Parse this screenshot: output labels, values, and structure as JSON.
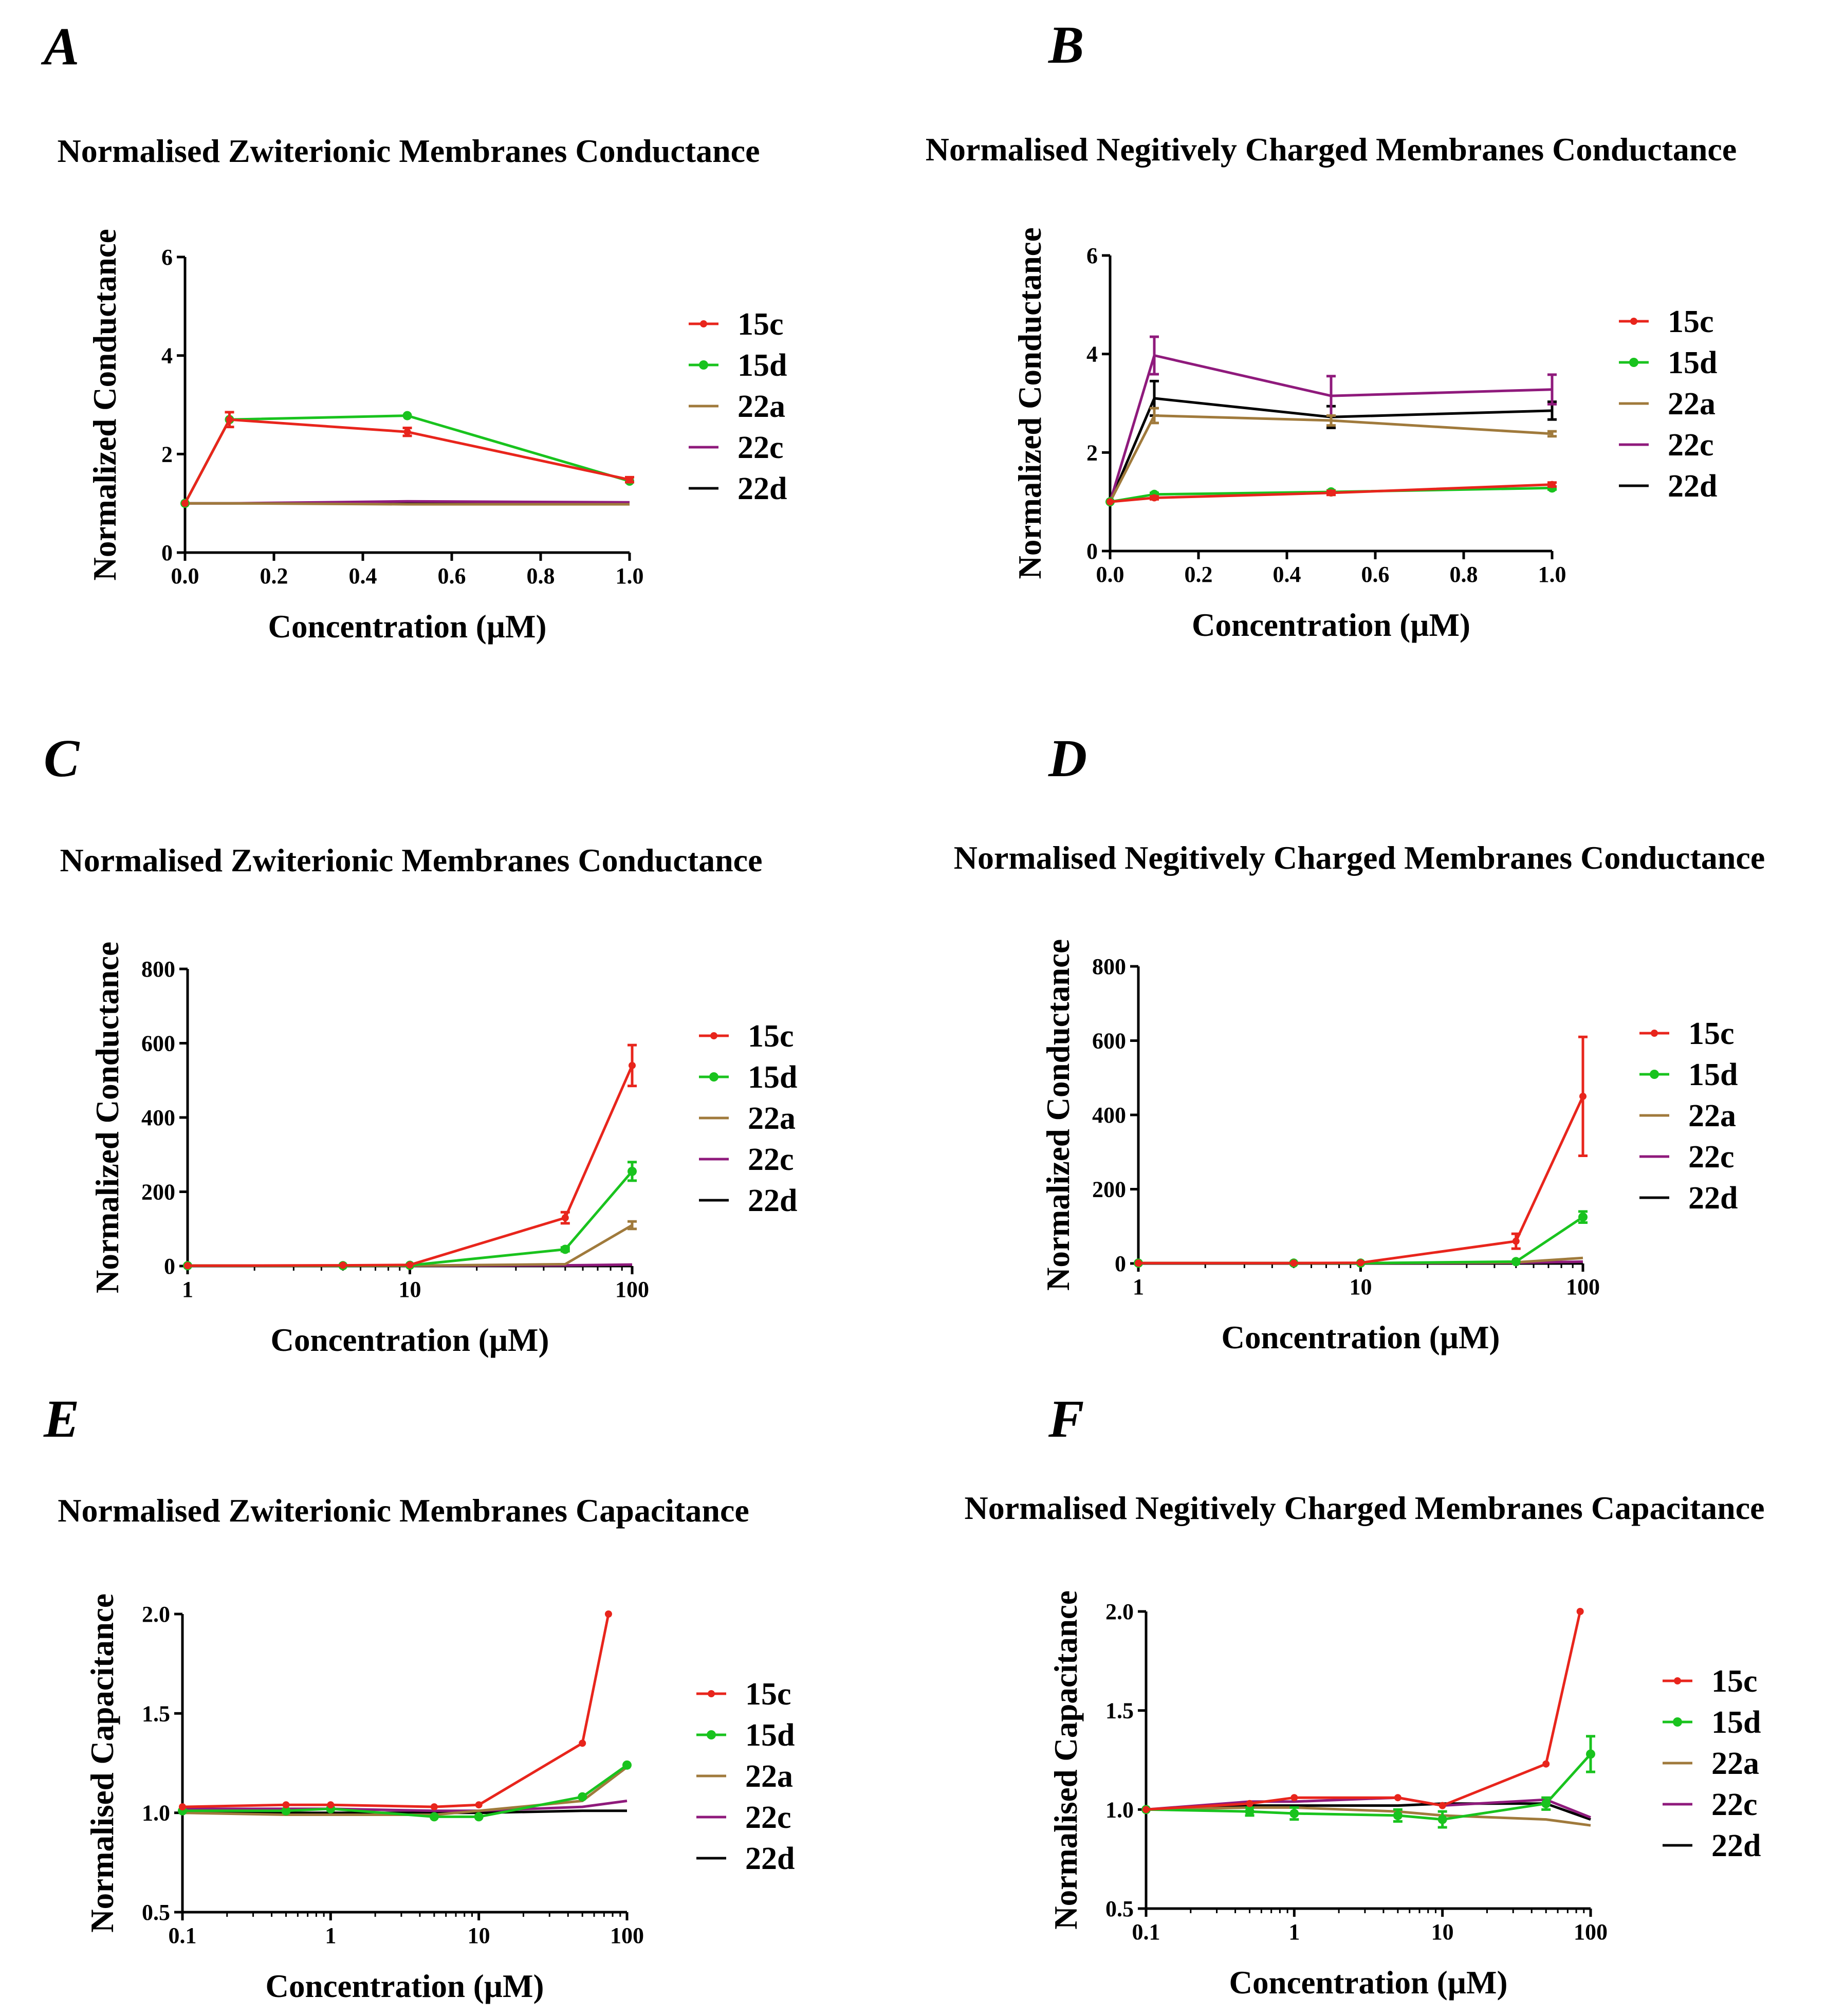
{
  "figure": {
    "colors": {
      "15c": "#e8251c",
      "15d": "#19c31e",
      "22a": "#a07a3c",
      "22c": "#8f1a7c",
      "22d": "#000000"
    },
    "legend": [
      "15c",
      "15d",
      "22a",
      "22c",
      "22d"
    ]
  },
  "chart_data": [
    {
      "panel": "A",
      "type": "line",
      "title": "Normalised Zwiterionic Membranes Conductance",
      "xlabel": "Concentration (µM)",
      "ylabel": "Normalized Conductance",
      "xscale": "linear",
      "xlim": [
        0,
        1
      ],
      "ylim": [
        0,
        6
      ],
      "xticks": [
        0,
        0.2,
        0.4,
        0.6,
        0.8,
        1
      ],
      "xtick_labels": [
        "0.0",
        "0.2",
        "0.4",
        "0.6",
        "0.8",
        "1.0"
      ],
      "yticks": [
        0,
        2,
        4,
        6
      ],
      "ytick_labels": [
        "0",
        "2",
        "4",
        "6"
      ],
      "legend_position": "right",
      "series": [
        {
          "name": "15c",
          "x": [
            0,
            0.1,
            0.5,
            1
          ],
          "y": [
            1.0,
            2.7,
            2.45,
            1.48
          ],
          "err": [
            0,
            0.15,
            0.08,
            0.05
          ]
        },
        {
          "name": "15d",
          "x": [
            0,
            0.1,
            0.5,
            1
          ],
          "y": [
            1.0,
            2.7,
            2.78,
            1.45
          ],
          "err": [
            0,
            0,
            0,
            0
          ]
        },
        {
          "name": "22a",
          "x": [
            0,
            0.1,
            0.5,
            1
          ],
          "y": [
            1.0,
            1.0,
            0.98,
            0.98
          ],
          "err": [
            0,
            0,
            0,
            0
          ]
        },
        {
          "name": "22c",
          "x": [
            0,
            0.1,
            0.5,
            1
          ],
          "y": [
            1.0,
            1.0,
            1.04,
            1.02
          ],
          "err": [
            0,
            0,
            0,
            0
          ]
        },
        {
          "name": "22d",
          "x": [
            0,
            0.1,
            0.5,
            1
          ],
          "y": [
            1.0,
            1.0,
            1.0,
            1.0
          ],
          "err": [
            0,
            0,
            0,
            0
          ]
        }
      ]
    },
    {
      "panel": "B",
      "type": "line",
      "title": "Normalised Negitively Charged Membranes Conductance",
      "xlabel": "Concentration (µM)",
      "ylabel": "Normalized Conductance",
      "xscale": "linear",
      "xlim": [
        0,
        1
      ],
      "ylim": [
        0,
        6
      ],
      "xticks": [
        0,
        0.2,
        0.4,
        0.6,
        0.8,
        1
      ],
      "xtick_labels": [
        "0.0",
        "0.2",
        "0.4",
        "0.6",
        "0.8",
        "1.0"
      ],
      "yticks": [
        0,
        2,
        4,
        6
      ],
      "ytick_labels": [
        "0",
        "2",
        "4",
        "6"
      ],
      "legend_position": "right",
      "series": [
        {
          "name": "15c",
          "x": [
            0,
            0.1,
            0.5,
            1
          ],
          "y": [
            1.0,
            1.08,
            1.18,
            1.35
          ],
          "err": [
            0,
            0.03,
            0.04,
            0.04
          ]
        },
        {
          "name": "15d",
          "x": [
            0,
            0.1,
            0.5,
            1
          ],
          "y": [
            1.0,
            1.15,
            1.2,
            1.28
          ],
          "err": [
            0,
            0.03,
            0.03,
            0.03
          ]
        },
        {
          "name": "22a",
          "x": [
            0,
            0.1,
            0.5,
            1
          ],
          "y": [
            1.0,
            2.75,
            2.65,
            2.38
          ],
          "err": [
            0,
            0.15,
            0.1,
            0.05
          ]
        },
        {
          "name": "22c",
          "x": [
            0,
            0.1,
            0.5,
            1
          ],
          "y": [
            1.0,
            3.97,
            3.15,
            3.28
          ],
          "err": [
            0,
            0.38,
            0.4,
            0.3
          ]
        },
        {
          "name": "22d",
          "x": [
            0,
            0.1,
            0.5,
            1
          ],
          "y": [
            1.0,
            3.1,
            2.72,
            2.85
          ],
          "err": [
            0,
            0.35,
            0.22,
            0.18
          ]
        }
      ]
    },
    {
      "panel": "C",
      "type": "line",
      "title": "Normalised Zwiterionic Membranes Conductance",
      "xlabel": "Concentration (µM)",
      "ylabel": "Normalized Conductance",
      "xscale": "log",
      "xlim": [
        1,
        100
      ],
      "ylim": [
        0,
        800
      ],
      "xticks": [
        1,
        10,
        100
      ],
      "xtick_labels": [
        "1",
        "10",
        "100"
      ],
      "yticks": [
        0,
        200,
        400,
        600,
        800
      ],
      "ytick_labels": [
        "0",
        "200",
        "400",
        "600",
        "800"
      ],
      "legend_position": "right",
      "series": [
        {
          "name": "15c",
          "x": [
            1,
            5,
            10,
            50,
            100
          ],
          "y": [
            1,
            2,
            3,
            130,
            540
          ],
          "err": [
            0,
            0,
            0,
            15,
            55
          ]
        },
        {
          "name": "15d",
          "x": [
            1,
            5,
            10,
            50,
            100
          ],
          "y": [
            1,
            1,
            2,
            45,
            255
          ],
          "err": [
            0,
            0,
            0,
            5,
            25
          ]
        },
        {
          "name": "22a",
          "x": [
            1,
            5,
            10,
            50,
            100
          ],
          "y": [
            1,
            1,
            1,
            5,
            110
          ],
          "err": [
            0,
            0,
            0,
            0,
            10
          ]
        },
        {
          "name": "22c",
          "x": [
            1,
            5,
            10,
            50,
            100
          ],
          "y": [
            1,
            1,
            1,
            2,
            4
          ],
          "err": [
            0,
            0,
            0,
            0,
            0
          ]
        },
        {
          "name": "22d",
          "x": [
            1,
            5,
            10,
            50,
            100
          ],
          "y": [
            1,
            1,
            1,
            1,
            2
          ],
          "err": [
            0,
            0,
            0,
            0,
            0
          ]
        }
      ]
    },
    {
      "panel": "D",
      "type": "line",
      "title": "Normalised Negitively Charged Membranes Conductance",
      "xlabel": "Concentration (µM)",
      "ylabel": "Normalized Conductance",
      "xscale": "log",
      "xlim": [
        1,
        100
      ],
      "ylim": [
        0,
        800
      ],
      "xticks": [
        1,
        10,
        100
      ],
      "xtick_labels": [
        "1",
        "10",
        "100"
      ],
      "yticks": [
        0,
        200,
        400,
        600,
        800
      ],
      "ytick_labels": [
        "0",
        "200",
        "400",
        "600",
        "800"
      ],
      "legend_position": "right",
      "series": [
        {
          "name": "15c",
          "x": [
            1,
            5,
            10,
            50,
            100
          ],
          "y": [
            1,
            1,
            2,
            60,
            450
          ],
          "err": [
            0,
            0,
            0,
            20,
            160
          ]
        },
        {
          "name": "15d",
          "x": [
            1,
            5,
            10,
            50,
            100
          ],
          "y": [
            1,
            1,
            1,
            5,
            125
          ],
          "err": [
            0,
            0,
            0,
            0,
            15
          ]
        },
        {
          "name": "22a",
          "x": [
            1,
            5,
            10,
            50,
            100
          ],
          "y": [
            1,
            1,
            1,
            3,
            15
          ],
          "err": [
            0,
            0,
            0,
            0,
            0
          ]
        },
        {
          "name": "22c",
          "x": [
            1,
            5,
            10,
            50,
            100
          ],
          "y": [
            1,
            1,
            1,
            2,
            5
          ],
          "err": [
            0,
            0,
            0,
            0,
            0
          ]
        },
        {
          "name": "22d",
          "x": [
            1,
            5,
            10,
            50,
            100
          ],
          "y": [
            1,
            1,
            1,
            1,
            3
          ],
          "err": [
            0,
            0,
            0,
            0,
            0
          ]
        }
      ]
    },
    {
      "panel": "E",
      "type": "line",
      "title": "Normalised Zwiterionic Membranes Capacitance",
      "xlabel": "Concentration (µM)",
      "ylabel": "Normalised Capacitance",
      "xscale": "log",
      "xlim": [
        0.1,
        100
      ],
      "ylim": [
        0.5,
        2.0
      ],
      "xticks": [
        0.1,
        1,
        10,
        100
      ],
      "xtick_labels": [
        "0.1",
        "1",
        "10",
        "100"
      ],
      "yticks": [
        0.5,
        1.0,
        1.5,
        2.0
      ],
      "ytick_labels": [
        "0.5",
        "1.0",
        "1.5",
        "2.0"
      ],
      "legend_position": "right",
      "series": [
        {
          "name": "15c",
          "x": [
            0.1,
            0.5,
            1,
            5,
            10,
            50,
            75
          ],
          "y": [
            1.03,
            1.04,
            1.04,
            1.03,
            1.04,
            1.35,
            2.0
          ],
          "err": [
            0,
            0,
            0,
            0,
            0,
            0,
            0
          ]
        },
        {
          "name": "15d",
          "x": [
            0.1,
            0.5,
            1,
            5,
            10,
            50,
            100
          ],
          "y": [
            1.01,
            1.01,
            1.02,
            0.98,
            0.98,
            1.08,
            1.24
          ],
          "err": [
            0,
            0,
            0,
            0,
            0,
            0,
            0
          ]
        },
        {
          "name": "22a",
          "x": [
            0.1,
            0.5,
            1,
            5,
            10,
            50,
            100
          ],
          "y": [
            1.0,
            0.99,
            0.99,
            0.99,
            1.01,
            1.06,
            1.23
          ],
          "err": [
            0,
            0,
            0,
            0,
            0,
            0,
            0
          ]
        },
        {
          "name": "22c",
          "x": [
            0.1,
            0.5,
            1,
            5,
            10,
            50,
            100
          ],
          "y": [
            1.02,
            1.02,
            1.02,
            1.01,
            1.01,
            1.03,
            1.06
          ],
          "err": [
            0,
            0,
            0,
            0,
            0,
            0,
            0
          ]
        },
        {
          "name": "22d",
          "x": [
            0.1,
            0.5,
            1,
            5,
            10,
            50,
            100
          ],
          "y": [
            1.0,
            1.0,
            1.0,
            1.0,
            1.0,
            1.01,
            1.01
          ],
          "err": [
            0,
            0,
            0,
            0,
            0,
            0,
            0
          ]
        }
      ]
    },
    {
      "panel": "F",
      "type": "line",
      "title": "Normalised Negitively Charged Membranes Capacitance",
      "xlabel": "Concentration (µM)",
      "ylabel": "Normalised Capacitance",
      "xscale": "log",
      "xlim": [
        0.1,
        100
      ],
      "ylim": [
        0.5,
        2.0
      ],
      "xticks": [
        0.1,
        1,
        10,
        100
      ],
      "xtick_labels": [
        "0.1",
        "1",
        "10",
        "100"
      ],
      "yticks": [
        0.5,
        1.0,
        1.5,
        2.0
      ],
      "ytick_labels": [
        "0.5",
        "1.0",
        "1.5",
        "2.0"
      ],
      "legend_position": "right",
      "series": [
        {
          "name": "15c",
          "x": [
            0.1,
            0.5,
            1,
            5,
            10,
            50,
            85
          ],
          "y": [
            1.0,
            1.03,
            1.06,
            1.06,
            1.02,
            1.23,
            2.0
          ],
          "err": [
            0,
            0,
            0,
            0,
            0,
            0,
            0
          ]
        },
        {
          "name": "15d",
          "x": [
            0.1,
            0.5,
            1,
            5,
            10,
            50,
            100
          ],
          "y": [
            1.0,
            0.99,
            0.98,
            0.97,
            0.95,
            1.03,
            1.28
          ],
          "err": [
            0,
            0.02,
            0.03,
            0.03,
            0.04,
            0.03,
            0.09
          ]
        },
        {
          "name": "22a",
          "x": [
            0.1,
            0.5,
            1,
            5,
            10,
            50,
            100
          ],
          "y": [
            1.0,
            1.01,
            1.01,
            0.99,
            0.97,
            0.95,
            0.92
          ],
          "err": [
            0,
            0,
            0,
            0,
            0,
            0,
            0
          ]
        },
        {
          "name": "22c",
          "x": [
            0.1,
            0.5,
            1,
            5,
            10,
            50,
            100
          ],
          "y": [
            1.0,
            1.04,
            1.04,
            1.06,
            1.02,
            1.05,
            0.96
          ],
          "err": [
            0,
            0,
            0,
            0,
            0,
            0,
            0
          ]
        },
        {
          "name": "22d",
          "x": [
            0.1,
            0.5,
            1,
            5,
            10,
            50,
            100
          ],
          "y": [
            1.0,
            1.02,
            1.02,
            1.02,
            1.03,
            1.03,
            0.95
          ],
          "err": [
            0,
            0,
            0,
            0,
            0,
            0,
            0
          ]
        }
      ]
    }
  ]
}
